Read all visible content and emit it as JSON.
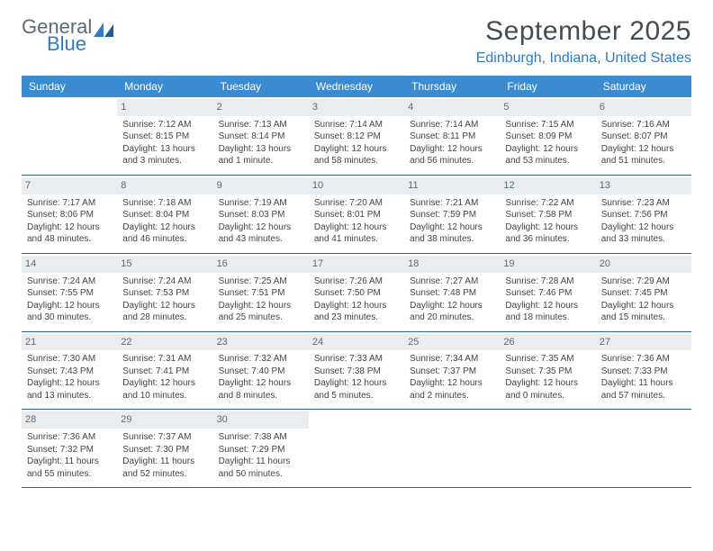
{
  "logo": {
    "word1": "General",
    "word2": "Blue"
  },
  "title": "September 2025",
  "location": "Edinburgh, Indiana, United States",
  "colors": {
    "header_bg": "#3b8bd1",
    "header_text": "#ffffff",
    "accent": "#2f7cc4",
    "daynum_bg": "#e9edf0",
    "rule": "#2d5f8f",
    "body_text": "#444444"
  },
  "day_headers": [
    "Sunday",
    "Monday",
    "Tuesday",
    "Wednesday",
    "Thursday",
    "Friday",
    "Saturday"
  ],
  "weeks": [
    [
      null,
      {
        "n": "1",
        "sr": "Sunrise: 7:12 AM",
        "ss": "Sunset: 8:15 PM",
        "dl": "Daylight: 13 hours and 3 minutes."
      },
      {
        "n": "2",
        "sr": "Sunrise: 7:13 AM",
        "ss": "Sunset: 8:14 PM",
        "dl": "Daylight: 13 hours and 1 minute."
      },
      {
        "n": "3",
        "sr": "Sunrise: 7:14 AM",
        "ss": "Sunset: 8:12 PM",
        "dl": "Daylight: 12 hours and 58 minutes."
      },
      {
        "n": "4",
        "sr": "Sunrise: 7:14 AM",
        "ss": "Sunset: 8:11 PM",
        "dl": "Daylight: 12 hours and 56 minutes."
      },
      {
        "n": "5",
        "sr": "Sunrise: 7:15 AM",
        "ss": "Sunset: 8:09 PM",
        "dl": "Daylight: 12 hours and 53 minutes."
      },
      {
        "n": "6",
        "sr": "Sunrise: 7:16 AM",
        "ss": "Sunset: 8:07 PM",
        "dl": "Daylight: 12 hours and 51 minutes."
      }
    ],
    [
      {
        "n": "7",
        "sr": "Sunrise: 7:17 AM",
        "ss": "Sunset: 8:06 PM",
        "dl": "Daylight: 12 hours and 48 minutes."
      },
      {
        "n": "8",
        "sr": "Sunrise: 7:18 AM",
        "ss": "Sunset: 8:04 PM",
        "dl": "Daylight: 12 hours and 46 minutes."
      },
      {
        "n": "9",
        "sr": "Sunrise: 7:19 AM",
        "ss": "Sunset: 8:03 PM",
        "dl": "Daylight: 12 hours and 43 minutes."
      },
      {
        "n": "10",
        "sr": "Sunrise: 7:20 AM",
        "ss": "Sunset: 8:01 PM",
        "dl": "Daylight: 12 hours and 41 minutes."
      },
      {
        "n": "11",
        "sr": "Sunrise: 7:21 AM",
        "ss": "Sunset: 7:59 PM",
        "dl": "Daylight: 12 hours and 38 minutes."
      },
      {
        "n": "12",
        "sr": "Sunrise: 7:22 AM",
        "ss": "Sunset: 7:58 PM",
        "dl": "Daylight: 12 hours and 36 minutes."
      },
      {
        "n": "13",
        "sr": "Sunrise: 7:23 AM",
        "ss": "Sunset: 7:56 PM",
        "dl": "Daylight: 12 hours and 33 minutes."
      }
    ],
    [
      {
        "n": "14",
        "sr": "Sunrise: 7:24 AM",
        "ss": "Sunset: 7:55 PM",
        "dl": "Daylight: 12 hours and 30 minutes."
      },
      {
        "n": "15",
        "sr": "Sunrise: 7:24 AM",
        "ss": "Sunset: 7:53 PM",
        "dl": "Daylight: 12 hours and 28 minutes."
      },
      {
        "n": "16",
        "sr": "Sunrise: 7:25 AM",
        "ss": "Sunset: 7:51 PM",
        "dl": "Daylight: 12 hours and 25 minutes."
      },
      {
        "n": "17",
        "sr": "Sunrise: 7:26 AM",
        "ss": "Sunset: 7:50 PM",
        "dl": "Daylight: 12 hours and 23 minutes."
      },
      {
        "n": "18",
        "sr": "Sunrise: 7:27 AM",
        "ss": "Sunset: 7:48 PM",
        "dl": "Daylight: 12 hours and 20 minutes."
      },
      {
        "n": "19",
        "sr": "Sunrise: 7:28 AM",
        "ss": "Sunset: 7:46 PM",
        "dl": "Daylight: 12 hours and 18 minutes."
      },
      {
        "n": "20",
        "sr": "Sunrise: 7:29 AM",
        "ss": "Sunset: 7:45 PM",
        "dl": "Daylight: 12 hours and 15 minutes."
      }
    ],
    [
      {
        "n": "21",
        "sr": "Sunrise: 7:30 AM",
        "ss": "Sunset: 7:43 PM",
        "dl": "Daylight: 12 hours and 13 minutes."
      },
      {
        "n": "22",
        "sr": "Sunrise: 7:31 AM",
        "ss": "Sunset: 7:41 PM",
        "dl": "Daylight: 12 hours and 10 minutes."
      },
      {
        "n": "23",
        "sr": "Sunrise: 7:32 AM",
        "ss": "Sunset: 7:40 PM",
        "dl": "Daylight: 12 hours and 8 minutes."
      },
      {
        "n": "24",
        "sr": "Sunrise: 7:33 AM",
        "ss": "Sunset: 7:38 PM",
        "dl": "Daylight: 12 hours and 5 minutes."
      },
      {
        "n": "25",
        "sr": "Sunrise: 7:34 AM",
        "ss": "Sunset: 7:37 PM",
        "dl": "Daylight: 12 hours and 2 minutes."
      },
      {
        "n": "26",
        "sr": "Sunrise: 7:35 AM",
        "ss": "Sunset: 7:35 PM",
        "dl": "Daylight: 12 hours and 0 minutes."
      },
      {
        "n": "27",
        "sr": "Sunrise: 7:36 AM",
        "ss": "Sunset: 7:33 PM",
        "dl": "Daylight: 11 hours and 57 minutes."
      }
    ],
    [
      {
        "n": "28",
        "sr": "Sunrise: 7:36 AM",
        "ss": "Sunset: 7:32 PM",
        "dl": "Daylight: 11 hours and 55 minutes."
      },
      {
        "n": "29",
        "sr": "Sunrise: 7:37 AM",
        "ss": "Sunset: 7:30 PM",
        "dl": "Daylight: 11 hours and 52 minutes."
      },
      {
        "n": "30",
        "sr": "Sunrise: 7:38 AM",
        "ss": "Sunset: 7:29 PM",
        "dl": "Daylight: 11 hours and 50 minutes."
      },
      null,
      null,
      null,
      null
    ]
  ]
}
